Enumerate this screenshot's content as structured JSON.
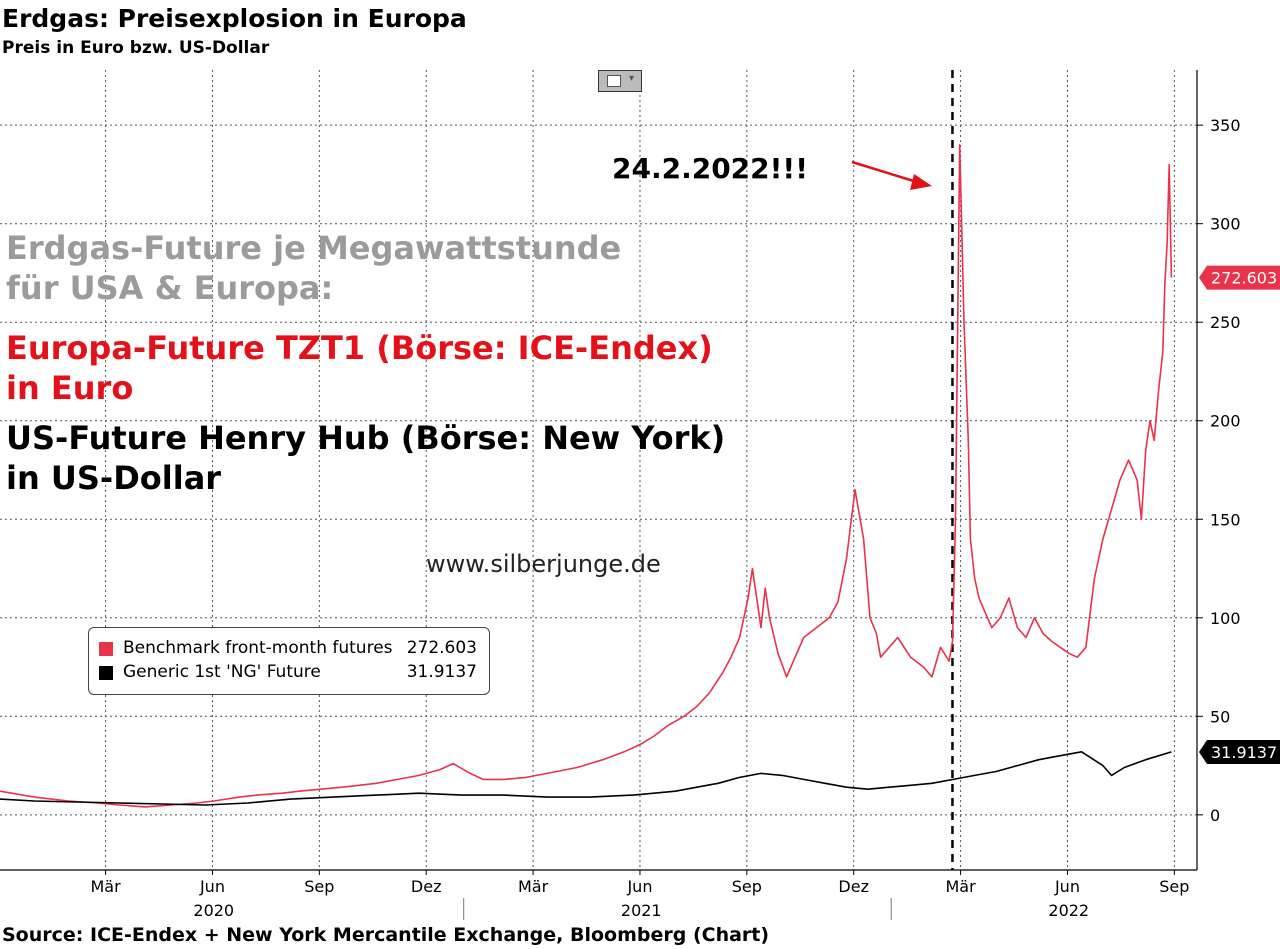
{
  "title": "Erdgas: Preisexplosion in Europa",
  "subtitle": "Preis in Euro bzw. US-Dollar",
  "annotations": {
    "gray_line1": "Erdgas-Future je Megawattstunde",
    "gray_line2": "für USA & Europa:",
    "red_line1": "Europa-Future TZT1 (Börse: ICE-Endex)",
    "red_line2": "in Euro",
    "black_line1": "US-Future Henry Hub (Börse: New York)",
    "black_line2": "in US-Dollar",
    "date_marker": "24.2.2022!!!"
  },
  "watermark": "www.silberjunge.de",
  "source": "Source: ICE-Endex + New York Mercantile Exchange, Bloomberg (Chart)",
  "legend": [
    {
      "name": "Benchmark front-month futures",
      "value": "272.603",
      "color": "#e8334a"
    },
    {
      "name": "Generic 1st 'NG' Future",
      "value": "31.9137",
      "color": "#000000"
    }
  ],
  "chart_data": {
    "type": "line",
    "title": "Erdgas: Preisexplosion in Europa",
    "ylim": [
      -28,
      378
    ],
    "y_ticks": [
      0,
      50,
      100,
      150,
      200,
      250,
      300,
      350
    ],
    "x_ticks": [
      {
        "label": "Mär",
        "t": 2020.167
      },
      {
        "label": "Jun",
        "t": 2020.417
      },
      {
        "label": "Sep",
        "t": 2020.667
      },
      {
        "label": "Dez",
        "t": 2020.917
      },
      {
        "label": "Mär",
        "t": 2021.167
      },
      {
        "label": "Jun",
        "t": 2021.417
      },
      {
        "label": "Sep",
        "t": 2021.667
      },
      {
        "label": "Dez",
        "t": 2021.917
      },
      {
        "label": "Mär",
        "t": 2022.167
      },
      {
        "label": "Jun",
        "t": 2022.417
      },
      {
        "label": "Sep",
        "t": 2022.667
      }
    ],
    "year_labels": [
      {
        "label": "2020",
        "t": 2020.42
      },
      {
        "label": "2021",
        "t": 2021.42
      },
      {
        "label": "2022",
        "t": 2022.42
      }
    ],
    "year_separators": [
      2021.0,
      2022.0
    ],
    "xlim": [
      2019.92,
      2022.72
    ],
    "event_line": 2022.148,
    "grid": true,
    "legend_position": "center-left",
    "series": [
      {
        "name": "Benchmark front-month futures",
        "color": "#e8334a",
        "last_value": "272.603",
        "x": [
          2019.92,
          2020.0,
          2020.08,
          2020.15,
          2020.2,
          2020.26,
          2020.32,
          2020.38,
          2020.42,
          2020.48,
          2020.52,
          2020.58,
          2020.62,
          2020.67,
          2020.72,
          2020.76,
          2020.8,
          2020.85,
          2020.9,
          2020.95,
          2020.98,
          2021.02,
          2021.05,
          2021.1,
          2021.15,
          2021.2,
          2021.27,
          2021.33,
          2021.38,
          2021.42,
          2021.45,
          2021.48,
          2021.52,
          2021.55,
          2021.58,
          2021.61,
          2021.63,
          2021.65,
          2021.67,
          2021.68,
          2021.7,
          2021.71,
          2021.72,
          2021.74,
          2021.76,
          2021.78,
          2021.8,
          2021.83,
          2021.86,
          2021.88,
          2021.9,
          2021.92,
          2021.94,
          2021.955,
          2021.97,
          2021.98,
          2022.0,
          2022.02,
          2022.05,
          2022.08,
          2022.1,
          2022.12,
          2022.14,
          2022.148,
          2022.155,
          2022.165,
          2022.175,
          2022.185,
          2022.19,
          2022.2,
          2022.21,
          2022.22,
          2022.24,
          2022.26,
          2022.28,
          2022.3,
          2022.32,
          2022.34,
          2022.36,
          2022.38,
          2022.4,
          2022.42,
          2022.44,
          2022.46,
          2022.48,
          2022.5,
          2022.52,
          2022.54,
          2022.56,
          2022.58,
          2022.59,
          2022.6,
          2022.61,
          2022.62,
          2022.63,
          2022.64,
          2022.645,
          2022.65,
          2022.655,
          2022.66
        ],
        "y": [
          12,
          9,
          7,
          6,
          5,
          4,
          5,
          6,
          7,
          9,
          10,
          11,
          12,
          13,
          14,
          15,
          16,
          18,
          20,
          23,
          26,
          21,
          18,
          18,
          19,
          21,
          24,
          28,
          32,
          36,
          40,
          45,
          50,
          55,
          62,
          72,
          80,
          90,
          110,
          125,
          95,
          115,
          100,
          82,
          70,
          80,
          90,
          95,
          100,
          108,
          130,
          165,
          140,
          100,
          92,
          80,
          85,
          90,
          80,
          75,
          70,
          85,
          78,
          88,
          150,
          340,
          250,
          190,
          140,
          120,
          110,
          105,
          95,
          100,
          110,
          95,
          90,
          100,
          92,
          88,
          85,
          82,
          80,
          85,
          120,
          140,
          155,
          170,
          180,
          170,
          150,
          185,
          200,
          190,
          215,
          235,
          270,
          290,
          330,
          272.603
        ]
      },
      {
        "name": "Generic 1st 'NG' Future",
        "color": "#000000",
        "last_value": "31.9137",
        "x": [
          2019.92,
          2020.0,
          2020.1,
          2020.2,
          2020.3,
          2020.4,
          2020.5,
          2020.6,
          2020.7,
          2020.8,
          2020.9,
          2021.0,
          2021.1,
          2021.2,
          2021.3,
          2021.4,
          2021.5,
          2021.55,
          2021.6,
          2021.65,
          2021.7,
          2021.75,
          2021.8,
          2021.85,
          2021.9,
          2021.95,
          2022.0,
          2022.05,
          2022.1,
          2022.15,
          2022.2,
          2022.25,
          2022.3,
          2022.35,
          2022.4,
          2022.45,
          2022.5,
          2022.52,
          2022.55,
          2022.6,
          2022.66
        ],
        "y": [
          8,
          7,
          6.5,
          6,
          5.5,
          5,
          6,
          8,
          9,
          10,
          11,
          10,
          10,
          9,
          9,
          10,
          12,
          14,
          16,
          19,
          21,
          20,
          18,
          16,
          14,
          13,
          14,
          15,
          16,
          18,
          20,
          22,
          25,
          28,
          30,
          32,
          25,
          20,
          24,
          28,
          31.9137
        ]
      }
    ]
  }
}
